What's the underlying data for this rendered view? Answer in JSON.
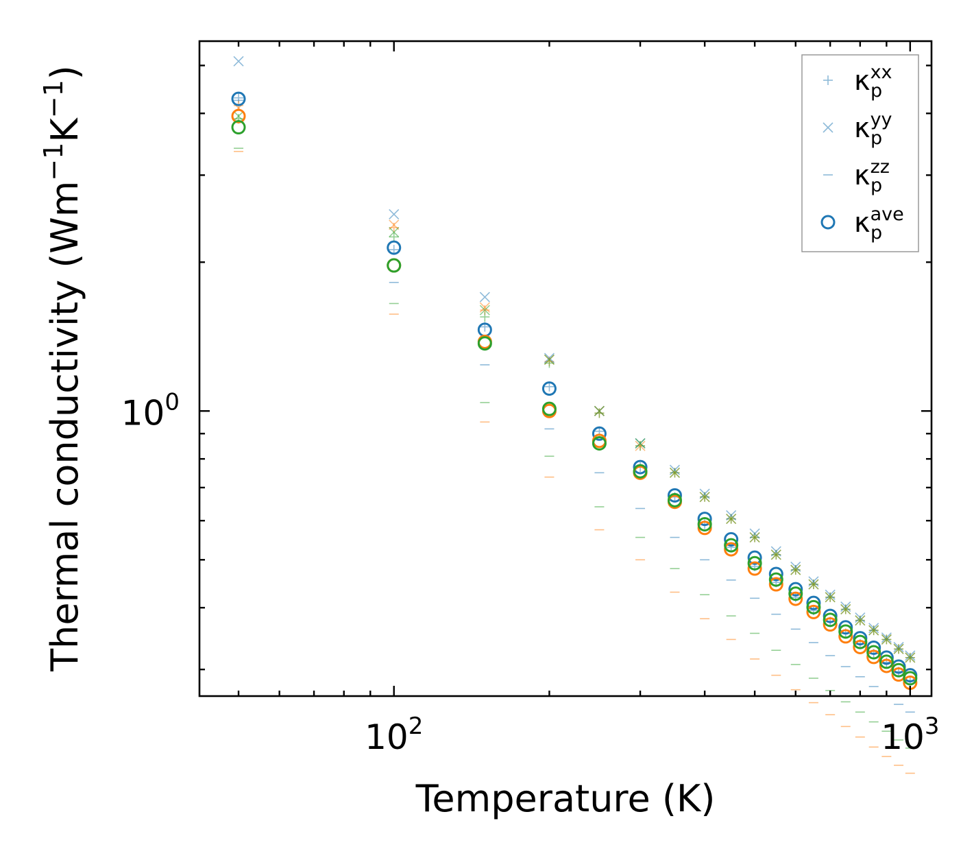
{
  "chart_data": {
    "type": "scatter",
    "title": "",
    "xlabel": "Temperature (K)",
    "ylabel_main": "Thermal conductivity (Wm",
    "ylabel_exp1": "−1",
    "ylabel_mid": "K",
    "ylabel_exp2": "−1",
    "ylabel_end": ")",
    "xscale": "log",
    "yscale": "log",
    "xlim": [
      42,
      1100
    ],
    "ylim": [
      0.265,
      5.6
    ],
    "xticks": [
      {
        "base": "10",
        "exp": "2",
        "value": 100
      },
      {
        "base": "10",
        "exp": "3",
        "value": 1000
      }
    ],
    "yticks": [
      {
        "base": "10",
        "exp": "0",
        "value": 1
      }
    ],
    "legend_position": "top-right",
    "legend": [
      {
        "symbol": "plus",
        "main": "κ",
        "sub": "p",
        "sup": "xx",
        "color": "#1f77b4"
      },
      {
        "symbol": "cross",
        "main": "κ",
        "sub": "p",
        "sup": "yy",
        "color": "#1f77b4"
      },
      {
        "symbol": "dash",
        "main": "κ",
        "sub": "p",
        "sup": "zz",
        "color": "#1f77b4"
      },
      {
        "symbol": "circle",
        "main": "κ",
        "sub": "p",
        "sup": "ave",
        "color": "#1f77b4"
      }
    ],
    "x": [
      50,
      100,
      150,
      200,
      250,
      300,
      350,
      400,
      450,
      500,
      550,
      600,
      650,
      700,
      750,
      800,
      850,
      900,
      950,
      1000
    ],
    "series": [
      {
        "name": "blue",
        "color": "#1f77b4",
        "xx": [
          4.3,
          2.12,
          1.48,
          1.12,
          0.91,
          0.77,
          0.67,
          0.59,
          0.53,
          0.485,
          0.45,
          0.42,
          0.395,
          0.375,
          0.355,
          0.338,
          0.323,
          0.31,
          0.297,
          0.285
        ],
        "yy": [
          5.1,
          2.5,
          1.7,
          1.28,
          1.0,
          0.86,
          0.76,
          0.68,
          0.615,
          0.565,
          0.52,
          0.484,
          0.452,
          0.425,
          0.402,
          0.382,
          0.364,
          0.348,
          0.333,
          0.32
        ],
        "zz": [
          4.25,
          1.82,
          1.24,
          0.92,
          0.75,
          0.635,
          0.555,
          0.5,
          0.455,
          0.418,
          0.388,
          0.362,
          0.34,
          0.32,
          0.304,
          0.29,
          0.277,
          0.265,
          0.255,
          0.246
        ],
        "ave": [
          4.28,
          2.14,
          1.46,
          1.11,
          0.9,
          0.77,
          0.675,
          0.605,
          0.55,
          0.505,
          0.468,
          0.436,
          0.409,
          0.385,
          0.365,
          0.347,
          0.332,
          0.317,
          0.304,
          0.292
        ]
      },
      {
        "name": "orange",
        "color": "#ff7f0e",
        "xx": [
          4.15,
          2.35,
          1.6,
          1.26,
          0.99,
          0.85,
          0.75,
          0.67,
          0.605,
          0.555,
          0.512,
          0.477,
          0.446,
          0.42,
          0.397,
          0.377,
          0.36,
          0.345,
          0.33,
          0.317
        ],
        "yy": [
          4.1,
          2.38,
          1.62,
          1.27,
          1.0,
          0.85,
          0.75,
          0.67,
          0.605,
          0.555,
          0.512,
          0.477,
          0.446,
          0.42,
          0.397,
          0.377,
          0.36,
          0.345,
          0.33,
          0.317
        ],
        "zz": [
          3.35,
          1.57,
          0.95,
          0.735,
          0.575,
          0.5,
          0.43,
          0.38,
          0.345,
          0.315,
          0.292,
          0.273,
          0.257,
          0.243,
          0.23,
          0.219,
          0.209,
          0.2,
          0.192,
          0.185
        ],
        "ave": [
          3.95,
          1.97,
          1.38,
          1.0,
          0.87,
          0.75,
          0.655,
          0.58,
          0.525,
          0.48,
          0.446,
          0.417,
          0.392,
          0.37,
          0.35,
          0.333,
          0.318,
          0.305,
          0.293,
          0.282
        ]
      },
      {
        "name": "green",
        "color": "#2ca02c",
        "xx": [
          3.9,
          2.25,
          1.55,
          1.25,
          0.99,
          0.85,
          0.75,
          0.67,
          0.605,
          0.555,
          0.512,
          0.477,
          0.446,
          0.42,
          0.397,
          0.377,
          0.36,
          0.345,
          0.33,
          0.317
        ],
        "yy": [
          3.95,
          2.3,
          1.6,
          1.27,
          1.0,
          0.86,
          0.75,
          0.67,
          0.605,
          0.555,
          0.512,
          0.477,
          0.446,
          0.42,
          0.397,
          0.377,
          0.36,
          0.345,
          0.33,
          0.317
        ],
        "zz": [
          3.4,
          1.65,
          1.04,
          0.81,
          0.64,
          0.555,
          0.48,
          0.425,
          0.385,
          0.355,
          0.328,
          0.307,
          0.288,
          0.272,
          0.258,
          0.246,
          0.235,
          0.225,
          0.216,
          0.208
        ],
        "ave": [
          3.75,
          1.97,
          1.37,
          1.01,
          0.86,
          0.755,
          0.66,
          0.59,
          0.535,
          0.492,
          0.456,
          0.427,
          0.401,
          0.378,
          0.358,
          0.341,
          0.325,
          0.311,
          0.299,
          0.288
        ]
      }
    ]
  }
}
